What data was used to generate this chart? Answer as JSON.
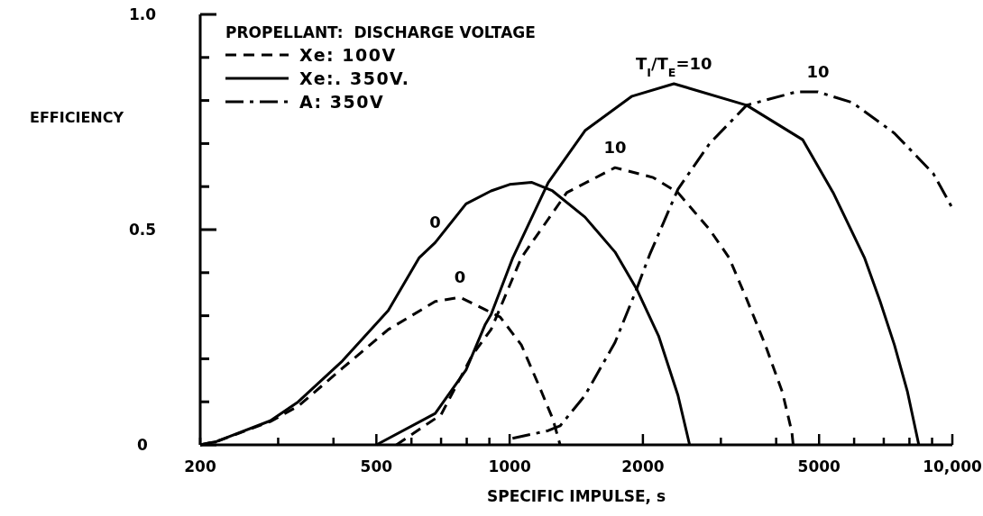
{
  "chart_data": {
    "type": "line",
    "xlabel": "SPECIFIC IMPULSE, s",
    "ylabel": "EFFICIENCY",
    "legend_title": "PROPELLANT:  DISCHARGE VOLTAGE",
    "legend": "top left",
    "log": "x",
    "grid": false,
    "marker": "none",
    "xlim": [
      200,
      10000
    ],
    "ylim": [
      0,
      1
    ],
    "xticks": [
      200,
      {
        "value": 300,
        "label": null
      },
      {
        "value": 400,
        "label": null
      },
      500,
      {
        "value": 600,
        "label": null
      },
      {
        "value": 700,
        "label": null
      },
      {
        "value": 800,
        "label": null
      },
      {
        "value": 900,
        "label": null
      },
      1000,
      2000,
      {
        "value": 3000,
        "label": null
      },
      {
        "value": 4000,
        "label": null
      },
      5000,
      {
        "value": 6000,
        "label": null
      },
      {
        "value": 7000,
        "label": null
      },
      {
        "value": 8000,
        "label": null
      },
      {
        "value": 9000,
        "label": null
      },
      {
        "value": 10000,
        "label": "10,000"
      }
    ],
    "yticks": [
      0,
      {
        "value": 0.1,
        "label": null
      },
      {
        "value": 0.2,
        "label": null
      },
      {
        "value": 0.3,
        "label": null
      },
      {
        "value": 0.4,
        "label": null
      },
      0.5,
      {
        "value": 0.6,
        "label": null
      },
      {
        "value": 0.7,
        "label": null
      },
      {
        "value": 0.8,
        "label": null
      },
      {
        "value": 0.9,
        "label": null
      },
      {
        "value": 1,
        "label": "1.0"
      }
    ],
    "series": [
      {
        "name": "Xe: 100V",
        "color": "#000000",
        "line_style": "dashed",
        "x": [
          200,
          218,
          288,
          333,
          419,
          532,
          679,
          772,
          881,
          952,
          1063,
          1173,
          1253,
          1300
        ],
        "values": [
          0,
          0.008,
          0.054,
          0.09,
          0.178,
          0.268,
          0.333,
          0.343,
          0.314,
          0.297,
          0.232,
          0.13,
          0.059,
          0
        ]
      },
      {
        "name": "Xe:. 350V.",
        "color": "#000000",
        "line_style": "solid",
        "x": [
          200,
          218,
          288,
          333,
          419,
          532,
          625,
          679,
          797,
          908,
          1000,
          1120,
          1250,
          1480,
          1730,
          1936,
          2170,
          2400,
          2550
        ],
        "values": [
          0,
          0.008,
          0.056,
          0.1,
          0.195,
          0.312,
          0.435,
          0.47,
          0.56,
          0.59,
          0.605,
          0.61,
          0.59,
          0.529,
          0.448,
          0.362,
          0.253,
          0.115,
          0
        ]
      },
      {
        "name": "A: 350V",
        "color": "#000000",
        "line_style": "dashdot",
        "x": [
          1015,
          1222,
          1300,
          1480,
          1730,
          1936,
          2070,
          2400,
          2830,
          3430,
          4440,
          4970,
          5950,
          7400,
          9060,
          10000
        ],
        "values": [
          0.015,
          0.033,
          0.044,
          0.115,
          0.238,
          0.362,
          0.441,
          0.594,
          0.7,
          0.789,
          0.82,
          0.82,
          0.795,
          0.724,
          0.63,
          0.55
        ]
      },
      {
        "color": "#000000",
        "line_style": "dashed",
        "x": [
          555,
          700,
          824,
          908,
          1063,
          1346,
          1730,
          2110,
          2400,
          2830,
          3130,
          3430,
          3780,
          4130,
          4340,
          4370
        ],
        "values": [
          0,
          0.07,
          0.209,
          0.268,
          0.435,
          0.586,
          0.644,
          0.621,
          0.586,
          0.5,
          0.435,
          0.339,
          0.232,
          0.123,
          0.03,
          0
        ]
      },
      {
        "color": "#000000",
        "line_style": "solid",
        "x": [
          500,
          679,
          797,
          881,
          908,
          1017,
          1222,
          1480,
          1890,
          2350,
          3430,
          4590,
          5380,
          6330,
          6870,
          7400,
          7920,
          8400
        ],
        "values": [
          0,
          0.073,
          0.174,
          0.28,
          0.303,
          0.435,
          0.609,
          0.73,
          0.81,
          0.839,
          0.789,
          0.709,
          0.586,
          0.435,
          0.333,
          0.232,
          0.123,
          0
        ]
      }
    ],
    "annotations": [
      {
        "text": "0",
        "x": 679,
        "y": 0.47
      },
      {
        "text": "0",
        "x": 772,
        "y": 0.343
      },
      {
        "text": "T$_{I}$/T$_{E}$=10",
        "x": 2350,
        "y": 0.839
      },
      {
        "text": "10",
        "x": 1730,
        "y": 0.644
      },
      {
        "text": "10",
        "x": 4970,
        "y": 0.82
      }
    ]
  }
}
